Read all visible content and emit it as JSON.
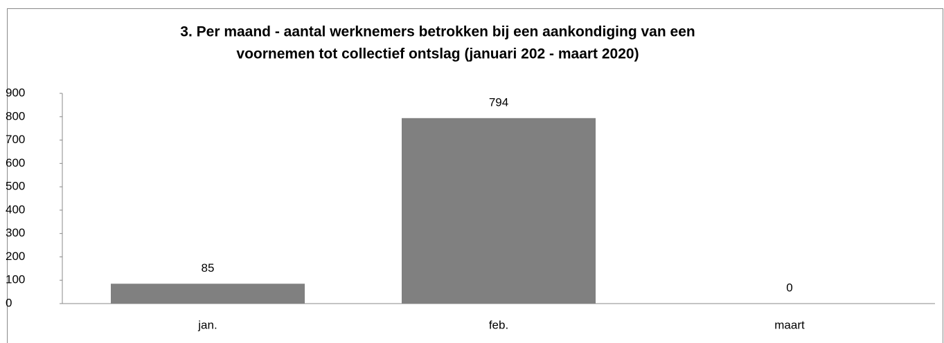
{
  "chart_data": {
    "type": "bar",
    "title": [
      "3. Per maand - aantal werknemers betrokken bij een aankondiging van een",
      "voornemen tot collectief ontslag (januari 202 - maart 2020)"
    ],
    "categories": [
      "jan.",
      "feb.",
      "maart"
    ],
    "values": [
      85,
      794,
      0
    ],
    "color": "#808080",
    "ylim": [
      0,
      900
    ],
    "yticks": [
      0,
      100,
      200,
      300,
      400,
      500,
      600,
      700,
      800,
      900
    ],
    "grid": false
  }
}
